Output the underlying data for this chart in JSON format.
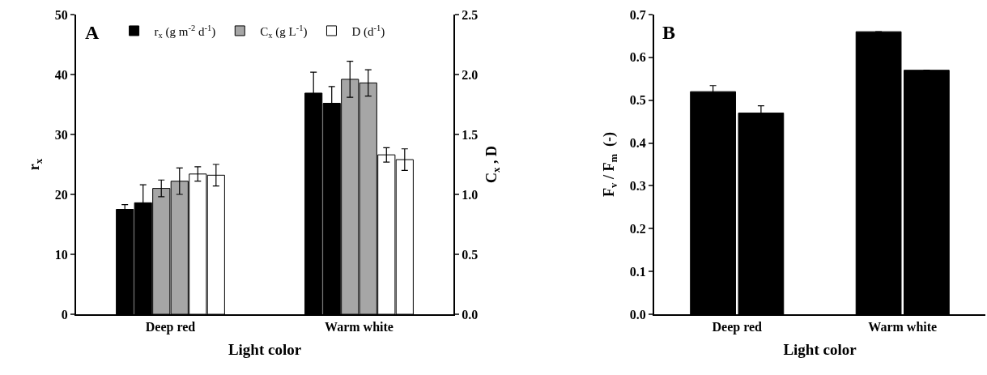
{
  "chart_data": [
    {
      "type": "bar",
      "categories": [
        "Deep red",
        "Warm white"
      ],
      "xlabel": "Light color",
      "ylabel": "r$_{x}$",
      "y2label": "C$_{x}$ , D",
      "series": [
        {
          "name": "r$_{x}$ (g m$^{-2}$ d$^{-1}$)",
          "color": "#000000",
          "values": [
            17.5,
            36.9
          ],
          "errors": [
            0.8,
            3.5
          ]
        },
        {
          "color": "#000000",
          "values": [
            18.6,
            35.2
          ],
          "errors": [
            3.0,
            2.8
          ]
        },
        {
          "name": "C$_{x}$ (g L$^{-1}$)",
          "color": "#a6a6a6",
          "values": [
            1.05,
            1.96
          ],
          "errors": [
            0.07,
            0.15
          ],
          "axis": "y2"
        },
        {
          "color": "#a6a6a6",
          "values": [
            1.11,
            1.93
          ],
          "errors": [
            0.11,
            0.11
          ],
          "axis": "y2"
        },
        {
          "name": "D (d$^{-1}$)",
          "color": "#ffffff",
          "values": [
            1.17,
            1.33
          ],
          "errors": [
            0.06,
            0.06
          ],
          "axis": "y2"
        },
        {
          "color": "#ffffff",
          "values": [
            1.16,
            1.29
          ],
          "errors": [
            0.09,
            0.09
          ],
          "axis": "y2"
        }
      ],
      "ylim": [
        0,
        50
      ],
      "yticks": [
        0,
        10,
        20,
        30,
        40,
        50
      ],
      "y2lim": [
        0,
        2.5
      ],
      "y2ticks": [
        {
          "value": 0,
          "label": "0.0"
        },
        {
          "value": 0.5,
          "label": "0.5"
        },
        {
          "value": 1,
          "label": "1.0"
        },
        {
          "value": 1.5,
          "label": "1.5"
        },
        {
          "value": 2,
          "label": "2.0"
        },
        {
          "value": 2.5,
          "label": "2.5"
        }
      ],
      "legend": "top",
      "grid": false,
      "annotations": [
        "A"
      ]
    },
    {
      "type": "bar",
      "categories": [
        "Deep red",
        "Warm white"
      ],
      "xlabel": "Light color",
      "ylabel": "F$_{v}$ / F$_{m}$  (-)",
      "series": [
        {
          "color": "#000000",
          "values": [
            0.52,
            0.66
          ],
          "errors": [
            0.014,
            null
          ]
        },
        {
          "color": "#000000",
          "values": [
            0.47,
            0.57
          ],
          "errors": [
            0.017,
            null
          ]
        }
      ],
      "ylim": [
        0,
        0.7
      ],
      "yticks": [
        {
          "value": 0,
          "label": "0.0"
        },
        {
          "value": 0.1,
          "label": "0.1"
        },
        {
          "value": 0.2,
          "label": "0.2"
        },
        {
          "value": 0.3,
          "label": "0.3"
        },
        {
          "value": 0.4,
          "label": "0.4"
        },
        {
          "value": 0.5,
          "label": "0.5"
        },
        {
          "value": 0.6,
          "label": "0.6"
        },
        {
          "value": 0.7,
          "label": "0.7"
        }
      ],
      "legend": false,
      "grid": false,
      "annotations": [
        "B"
      ]
    }
  ]
}
